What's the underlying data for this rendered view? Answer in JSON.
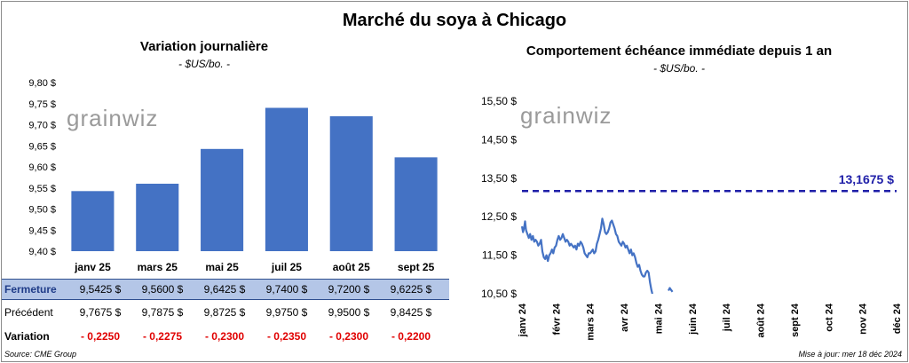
{
  "title": "Marché du soya à Chicago",
  "left": {
    "title": "Variation journalière",
    "unit": "- $US/bo. -",
    "logo": "grainwiz"
  },
  "right": {
    "title": "Comportement échéance immédiate depuis 1 an",
    "unit": "- $US/bo. -",
    "logo": "grainwiz",
    "ref_label": "13,1675 $"
  },
  "table": {
    "row1_label": "Fermeture",
    "row2_label": "Précédent",
    "row3_label": "Variation",
    "fermeture": [
      "9,5425 $",
      "9,5600 $",
      "9,6425 $",
      "9,7400 $",
      "9,7200 $",
      "9,6225 $"
    ],
    "precedent": [
      "9,7675 $",
      "9,7875 $",
      "9,8725 $",
      "9,9750 $",
      "9,9500 $",
      "9,8425 $"
    ],
    "variation": [
      "- 0,2250",
      "- 0,2275",
      "- 0,2300",
      "- 0,2350",
      "- 0,2300",
      "- 0,2200"
    ]
  },
  "footer": {
    "source": "Source: CME Group",
    "updated": "Mise à jour: mer 18 déc 2024"
  },
  "colors": {
    "bar": "#4472c4",
    "line": "#4472c4",
    "ref": "#1f1fa8",
    "neg": "#e00000",
    "row_fill": "#b4c6e7"
  },
  "chart_data": [
    {
      "type": "bar",
      "title": "Variation journalière",
      "ylabel": "$US/bo.",
      "categories": [
        "janv 25",
        "mars 25",
        "mai 25",
        "juil 25",
        "août 25",
        "sept 25"
      ],
      "values": [
        9.5425,
        9.56,
        9.6425,
        9.74,
        9.72,
        9.6225
      ],
      "ylim": [
        9.4,
        9.8
      ],
      "yticks": [
        9.4,
        9.45,
        9.5,
        9.55,
        9.6,
        9.65,
        9.7,
        9.75,
        9.8
      ],
      "ytick_labels": [
        "9,40 $",
        "9,45 $",
        "9,50 $",
        "9,55 $",
        "9,60 $",
        "9,65 $",
        "9,70 $",
        "9,75 $",
        "9,80 $"
      ],
      "grid": false
    },
    {
      "type": "line",
      "title": "Comportement échéance immédiate depuis 1 an",
      "ylabel": "$US/bo.",
      "ylim": [
        10.5,
        15.5
      ],
      "yticks": [
        10.5,
        11.5,
        12.5,
        13.5,
        14.5,
        15.5
      ],
      "ytick_labels": [
        "10,50 $",
        "11,50 $",
        "12,50 $",
        "13,50 $",
        "14,50 $",
        "15,50 $"
      ],
      "xtick_labels": [
        "janv 24",
        "févr 24",
        "mars 24",
        "avr 24",
        "mai 24",
        "juin 24",
        "juil 24",
        "août 24",
        "sept 24",
        "oct 24",
        "nov 24",
        "déc 24"
      ],
      "reference_line": {
        "value": 13.1675,
        "label": "13,1675 $",
        "style": "dashed"
      },
      "series": [
        {
          "segment": 1,
          "values": [
            [
              0,
              12.25
            ],
            [
              0.03,
              12.1
            ],
            [
              0.06,
              12.2
            ],
            [
              0.09,
              12.38
            ],
            [
              0.12,
              12.15
            ],
            [
              0.16,
              12.05
            ],
            [
              0.2,
              11.95
            ],
            [
              0.24,
              12.05
            ],
            [
              0.28,
              11.9
            ],
            [
              0.32,
              12.0
            ],
            [
              0.36,
              11.85
            ],
            [
              0.4,
              11.9
            ],
            [
              0.44,
              11.85
            ],
            [
              0.48,
              11.75
            ],
            [
              0.52,
              11.8
            ],
            [
              0.56,
              11.9
            ],
            [
              0.6,
              11.6
            ],
            [
              0.64,
              11.45
            ],
            [
              0.68,
              11.4
            ],
            [
              0.72,
              11.5
            ],
            [
              0.76,
              11.35
            ],
            [
              0.8,
              11.5
            ],
            [
              0.84,
              11.55
            ],
            [
              0.88,
              11.65
            ],
            [
              0.92,
              11.55
            ],
            [
              0.96,
              11.7
            ],
            [
              1.0,
              11.75
            ],
            [
              1.04,
              11.9
            ],
            [
              1.08,
              12.0
            ],
            [
              1.12,
              11.9
            ],
            [
              1.16,
              11.95
            ],
            [
              1.2,
              12.05
            ],
            [
              1.24,
              11.95
            ],
            [
              1.28,
              11.85
            ],
            [
              1.32,
              11.9
            ],
            [
              1.36,
              11.85
            ],
            [
              1.4,
              11.75
            ],
            [
              1.44,
              11.8
            ],
            [
              1.48,
              11.75
            ],
            [
              1.52,
              11.7
            ],
            [
              1.56,
              11.75
            ],
            [
              1.6,
              11.65
            ],
            [
              1.64,
              11.8
            ],
            [
              1.68,
              11.75
            ],
            [
              1.72,
              11.85
            ],
            [
              1.76,
              11.8
            ],
            [
              1.8,
              11.7
            ],
            [
              1.84,
              11.55
            ],
            [
              1.88,
              11.5
            ],
            [
              1.92,
              11.45
            ],
            [
              1.96,
              11.55
            ],
            [
              2.0,
              11.55
            ],
            [
              2.04,
              11.6
            ],
            [
              2.08,
              11.65
            ],
            [
              2.12,
              11.55
            ],
            [
              2.16,
              11.6
            ],
            [
              2.2,
              11.8
            ],
            [
              2.24,
              11.9
            ],
            [
              2.28,
              12.05
            ],
            [
              2.32,
              12.2
            ],
            [
              2.36,
              12.45
            ],
            [
              2.4,
              12.3
            ],
            [
              2.44,
              12.1
            ],
            [
              2.48,
              12.05
            ],
            [
              2.52,
              12.1
            ],
            [
              2.56,
              12.2
            ],
            [
              2.6,
              12.35
            ],
            [
              2.64,
              12.4
            ],
            [
              2.68,
              12.3
            ],
            [
              2.72,
              12.2
            ],
            [
              2.76,
              12.05
            ],
            [
              2.8,
              12.0
            ],
            [
              2.84,
              11.85
            ],
            [
              2.88,
              11.8
            ],
            [
              2.92,
              11.75
            ],
            [
              2.96,
              11.85
            ],
            [
              3.0,
              11.8
            ],
            [
              3.04,
              11.7
            ],
            [
              3.08,
              11.75
            ],
            [
              3.12,
              11.65
            ],
            [
              3.16,
              11.55
            ],
            [
              3.2,
              11.65
            ],
            [
              3.24,
              11.5
            ],
            [
              3.28,
              11.55
            ],
            [
              3.32,
              11.45
            ],
            [
              3.36,
              11.3
            ],
            [
              3.4,
              11.2
            ],
            [
              3.44,
              11.25
            ],
            [
              3.48,
              11.1
            ],
            [
              3.52,
              11.0
            ],
            [
              3.56,
              10.95
            ],
            [
              3.6,
              10.95
            ],
            [
              3.64,
              11.05
            ],
            [
              3.68,
              11.1
            ],
            [
              3.72,
              11.05
            ],
            [
              3.76,
              10.8
            ],
            [
              3.8,
              10.6
            ],
            [
              3.83,
              10.5
            ]
          ]
        },
        {
          "segment": 2,
          "values": [
            [
              4.3,
              10.58
            ],
            [
              4.34,
              10.65
            ],
            [
              4.38,
              10.6
            ],
            [
              4.42,
              10.55
            ]
          ]
        }
      ]
    }
  ]
}
